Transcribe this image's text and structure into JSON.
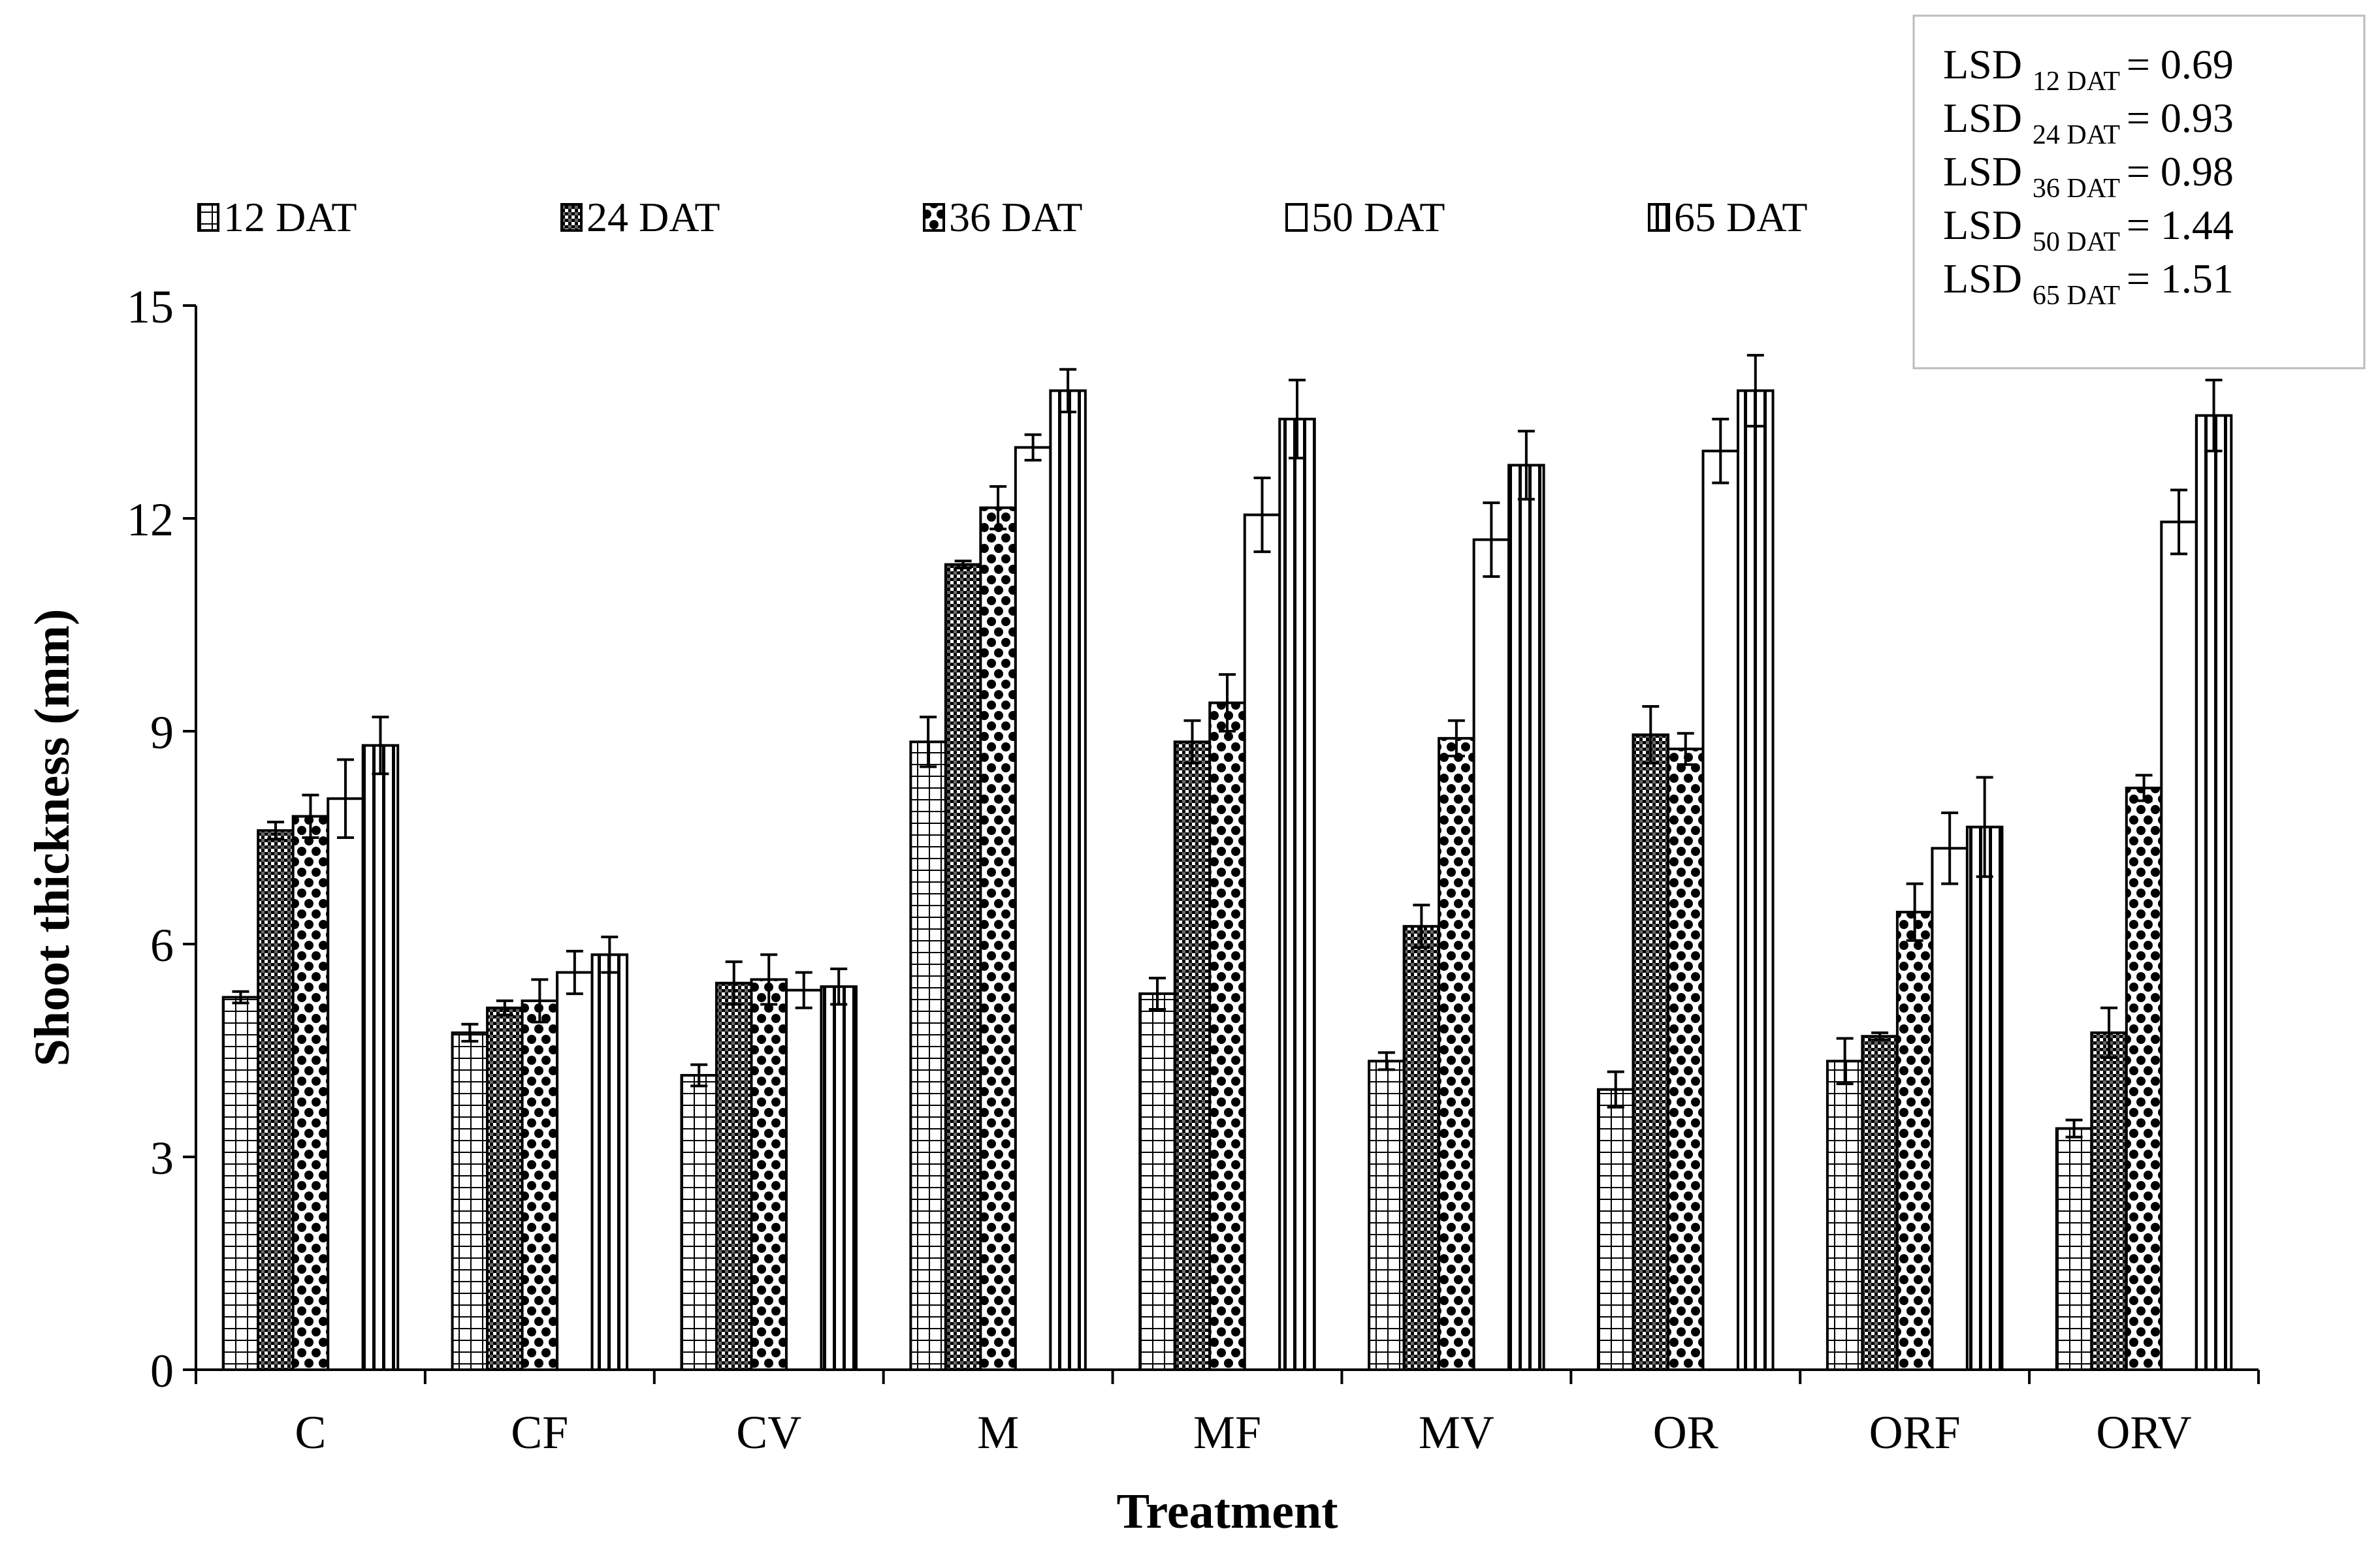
{
  "chart_data": {
    "type": "bar",
    "title": "",
    "xlabel": "Treatment",
    "ylabel": "Shoot thickness (mm)",
    "ylim": [
      0,
      15
    ],
    "yticks": [
      0,
      3,
      6,
      9,
      12,
      15
    ],
    "grid": false,
    "legend_position": "top",
    "categories": [
      "C",
      "CF",
      "CV",
      "M",
      "MF",
      "MV",
      "OR",
      "ORF",
      "ORV"
    ],
    "series": [
      {
        "name": "12 DAT",
        "pattern": "grid",
        "values": [
          5.25,
          4.75,
          4.15,
          8.85,
          5.3,
          4.35,
          3.95,
          4.35,
          3.4
        ],
        "errors": [
          0.08,
          0.12,
          0.15,
          0.35,
          0.22,
          0.12,
          0.25,
          0.32,
          0.12
        ]
      },
      {
        "name": "24 DAT",
        "pattern": "dense",
        "values": [
          7.6,
          5.1,
          5.45,
          11.35,
          8.85,
          6.25,
          8.95,
          4.7,
          4.75
        ],
        "errors": [
          0.12,
          0.1,
          0.3,
          0.05,
          0.3,
          0.3,
          0.4,
          0.05,
          0.35
        ]
      },
      {
        "name": "36 DAT",
        "pattern": "dots",
        "values": [
          7.8,
          5.2,
          5.5,
          12.15,
          9.4,
          8.9,
          8.75,
          6.45,
          8.2
        ],
        "errors": [
          0.3,
          0.3,
          0.35,
          0.3,
          0.4,
          0.25,
          0.22,
          0.4,
          0.18
        ]
      },
      {
        "name": "50 DAT",
        "pattern": "white",
        "values": [
          8.05,
          5.6,
          5.35,
          13.0,
          12.05,
          11.7,
          12.95,
          7.35,
          11.95
        ],
        "errors": [
          0.55,
          0.3,
          0.25,
          0.18,
          0.52,
          0.52,
          0.45,
          0.5,
          0.45
        ]
      },
      {
        "name": "65 DAT",
        "pattern": "vlines",
        "values": [
          8.8,
          5.85,
          5.4,
          13.8,
          13.4,
          12.75,
          13.8,
          7.65,
          13.45
        ],
        "errors": [
          0.4,
          0.25,
          0.25,
          0.3,
          0.55,
          0.48,
          0.5,
          0.7,
          0.5
        ]
      }
    ],
    "annotation": {
      "lines": [
        {
          "label": "LSD",
          "sub": "12 DAT",
          "value": "= 0.69"
        },
        {
          "label": "LSD",
          "sub": "24 DAT",
          "value": "= 0.93"
        },
        {
          "label": "LSD",
          "sub": "36 DAT",
          "value": "= 0.98"
        },
        {
          "label": "LSD",
          "sub": "50 DAT",
          "value": "= 1.44"
        },
        {
          "label": "LSD",
          "sub": "65 DAT",
          "value": "= 1.51"
        }
      ]
    }
  }
}
